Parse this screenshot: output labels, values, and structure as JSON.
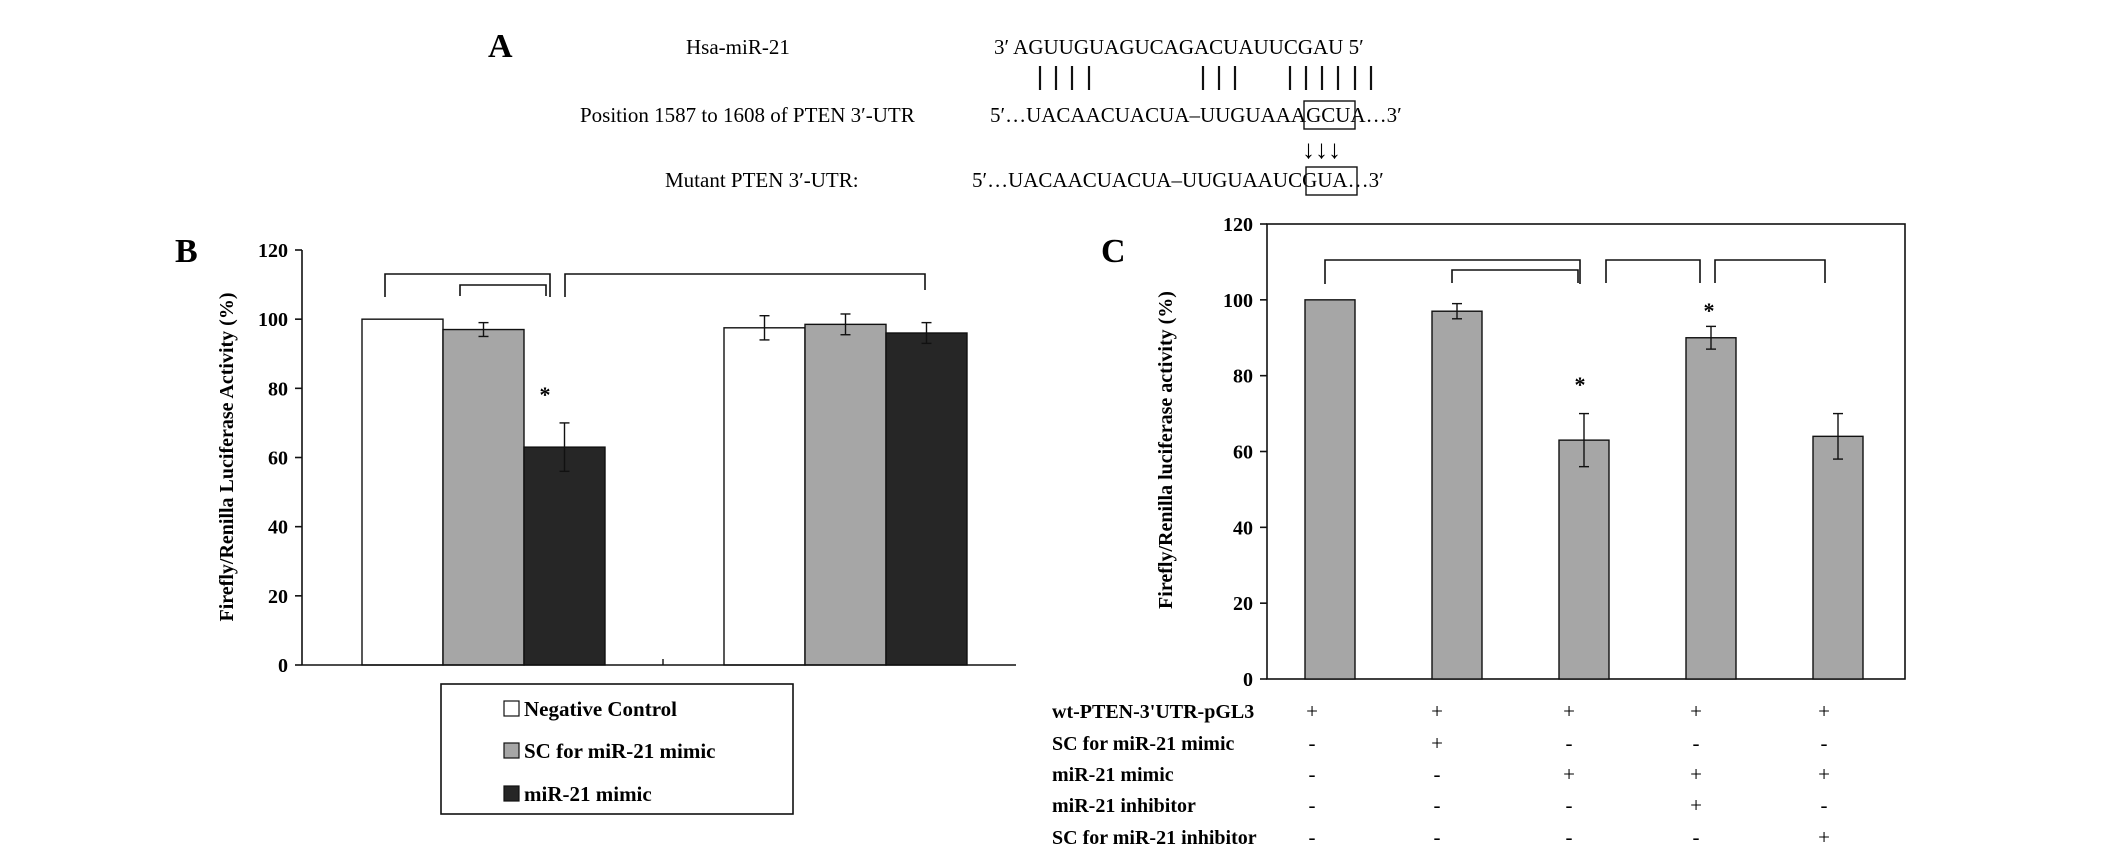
{
  "panel_a": {
    "label": "A",
    "mirna_name": "Hsa-miR-21",
    "mirna_seq": "3′ AGUUGUAGUCAGACUAUUCGAU 5′",
    "pairing_bars": "| | | |          | | |    | | | | | |",
    "wt_name": "Position 1587 to 1608 of PTEN 3′-UTR",
    "wt_seq": "5′…UACAACUACUA–UUGUAAAGCUA…3′",
    "arrows": "↓↓↓",
    "mut_name": "Mutant PTEN 3′-UTR:",
    "mut_seq": "5′…UACAACUACUA–UUGUAAUCGUA…3′"
  },
  "panel_b": {
    "label": "B",
    "ylabel": "Firefly/Renilla Luciferase Activity (%)",
    "legend": [
      "Negative Control",
      "SC for miR-21 mimic",
      "miR-21 mimic"
    ],
    "significance_mark": "*"
  },
  "panel_c": {
    "label": "C",
    "ylabel": "Firefly/Renilla luciferase activity (%)",
    "significance_mark": "*",
    "condition_rows": [
      {
        "name": "wt-PTEN-3'UTR-pGL3",
        "marks": [
          "+",
          "+",
          "+",
          "+",
          "+"
        ]
      },
      {
        "name": "SC for miR-21 mimic",
        "marks": [
          "-",
          "+",
          "-",
          "-",
          "-"
        ]
      },
      {
        "name": "miR-21 mimic",
        "marks": [
          "-",
          "-",
          "+",
          "+",
          "+"
        ]
      },
      {
        "name": "miR-21 inhibitor",
        "marks": [
          "-",
          "-",
          "-",
          "+",
          "-"
        ]
      },
      {
        "name": "SC for miR-21 inhibitor",
        "marks": [
          "-",
          "-",
          "-",
          "-",
          "+"
        ]
      }
    ]
  },
  "colors": {
    "negative_control": "#ffffff",
    "sc_mimic": "#a6a6a6",
    "mimic": "#262626",
    "panel_c_bars": "#a6a6a6"
  },
  "chart_data": [
    {
      "type": "bar",
      "panel": "B",
      "ylabel": "Firefly/Renilla Luciferase Activity (%)",
      "ylim": [
        0,
        120
      ],
      "yticks": [
        0,
        20,
        40,
        60,
        80,
        100,
        120
      ],
      "group_count": 2,
      "series": [
        {
          "name": "Negative Control",
          "values": [
            100,
            97.5
          ],
          "errors": [
            0,
            3.5
          ]
        },
        {
          "name": "SC for miR-21 mimic",
          "values": [
            97,
            98.5
          ],
          "errors": [
            2,
            3
          ]
        },
        {
          "name": "miR-21 mimic",
          "values": [
            63,
            96
          ],
          "errors": [
            7,
            3
          ]
        }
      ],
      "significant": [
        {
          "series": 2,
          "group": 0
        }
      ],
      "legend_position": "bottom"
    },
    {
      "type": "bar",
      "panel": "C",
      "ylabel": "Firefly/Renilla luciferase activity (%)",
      "ylim": [
        0,
        120
      ],
      "yticks": [
        0,
        20,
        40,
        60,
        80,
        100,
        120
      ],
      "values": [
        100,
        97,
        63,
        90,
        64
      ],
      "errors": [
        0,
        2,
        7,
        3,
        6
      ],
      "significant": [
        2,
        3
      ]
    }
  ]
}
